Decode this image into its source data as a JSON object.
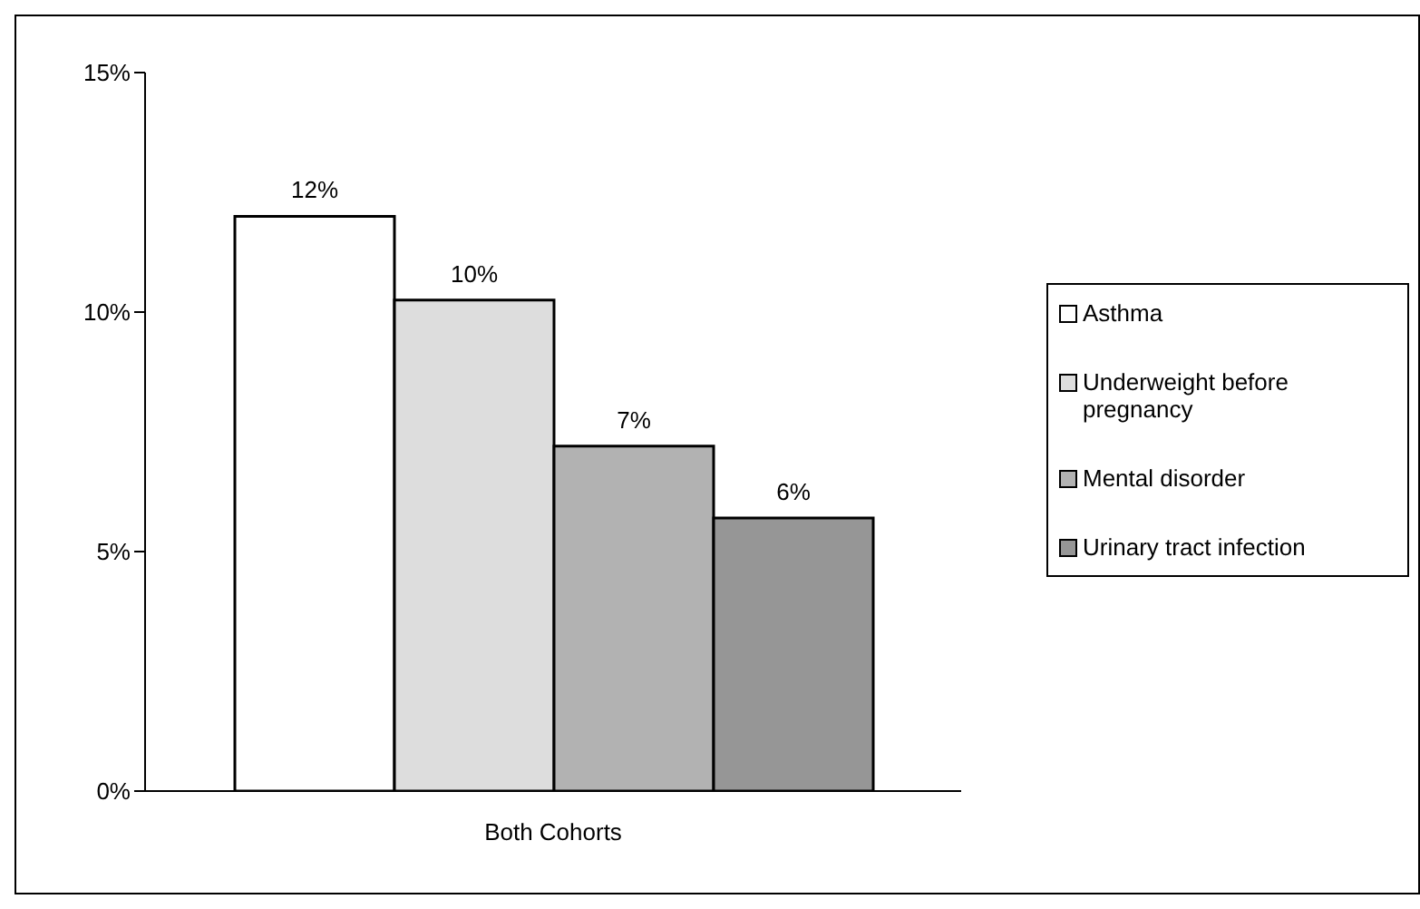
{
  "chart_data": {
    "type": "bar",
    "categories": [
      "Both Cohorts"
    ],
    "series": [
      {
        "name": "Asthma",
        "color": "#ffffff",
        "values": [
          12
        ],
        "value_labels": [
          "12%"
        ]
      },
      {
        "name": "Underweight before pregnancy",
        "color": "#dddddd",
        "values": [
          10.25
        ],
        "value_labels": [
          "10%"
        ]
      },
      {
        "name": "Mental disorder",
        "color": "#b2b2b2",
        "values": [
          7.2
        ],
        "value_labels": [
          "7%"
        ]
      },
      {
        "name": "Urinary tract infection",
        "color": "#969696",
        "values": [
          5.7
        ],
        "value_labels": [
          "6%"
        ]
      }
    ],
    "ylim": [
      0,
      15
    ],
    "yticks": [
      {
        "value": 0,
        "label": "0%"
      },
      {
        "value": 5,
        "label": "5%"
      },
      {
        "value": 10,
        "label": "10%"
      },
      {
        "value": 15,
        "label": "15%"
      }
    ],
    "grid": false,
    "legend": "right"
  }
}
